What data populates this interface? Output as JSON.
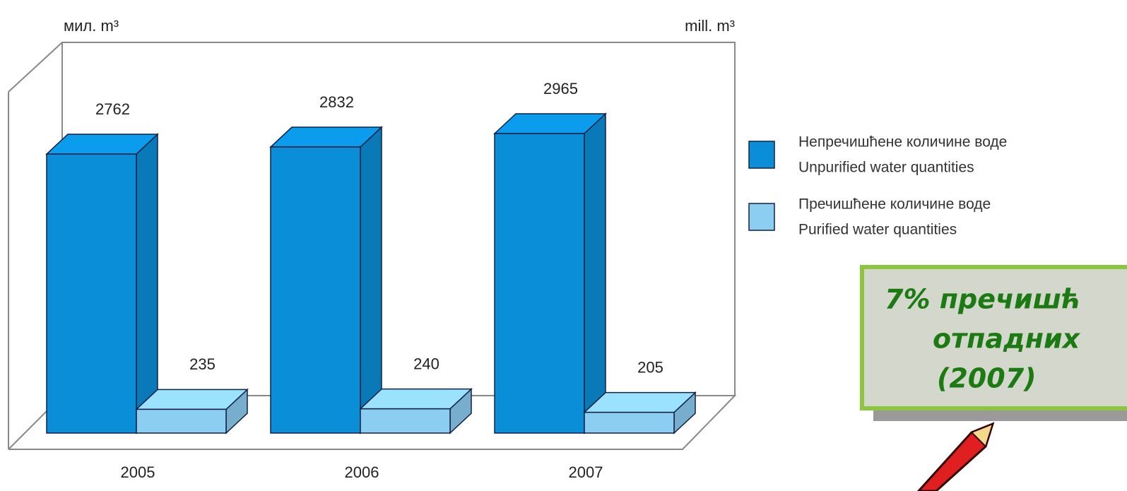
{
  "chart_data": {
    "type": "bar3d",
    "unit_left": "мил. m³",
    "unit_right": "mill. m³",
    "categories": [
      "2005",
      "2006",
      "2007"
    ],
    "series": [
      {
        "name": "Непречишћене количине воде",
        "name_en": "Unpurified water quantities",
        "color": "#0a8ed8",
        "values": [
          2762,
          2832,
          2965
        ]
      },
      {
        "name": "Пречишћене количине воде",
        "name_en": "Purified water quantities",
        "color": "#8ccdf2",
        "values": [
          235,
          240,
          205
        ]
      }
    ],
    "callout": [
      "7% пречишћ",
      "отпадних",
      "(2007)"
    ]
  }
}
